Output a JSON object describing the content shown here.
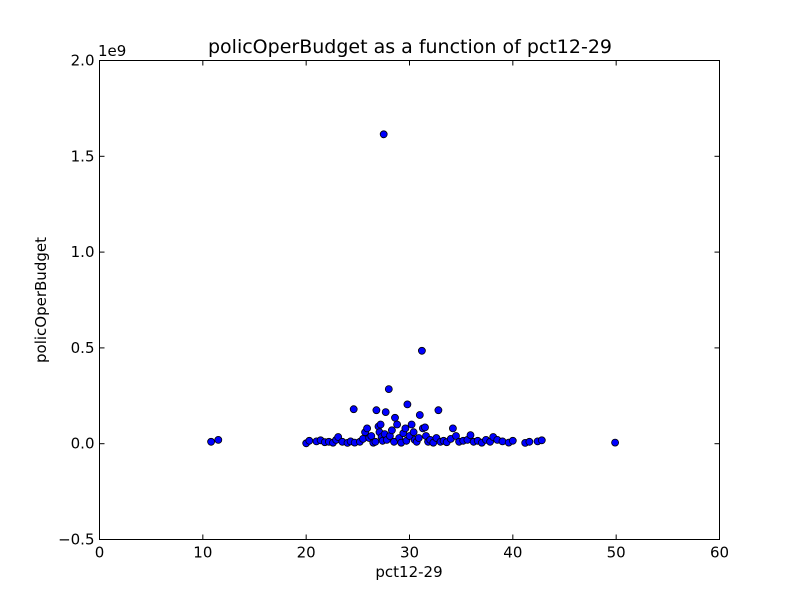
{
  "chart_data": {
    "type": "scatter",
    "title": "policOperBudget as a function of pct12-29",
    "xlabel": "pct12-29",
    "ylabel": "policOperBudget",
    "y_offset_label": "1e9",
    "xlim": [
      0,
      60
    ],
    "ylim": [
      -0.5,
      2.0
    ],
    "x_ticks": [
      0,
      10,
      20,
      30,
      40,
      50,
      60
    ],
    "x_tick_labels": [
      "0",
      "10",
      "20",
      "30",
      "40",
      "50",
      "60"
    ],
    "y_ticks": [
      -0.5,
      0.0,
      0.5,
      1.0,
      1.5,
      2.0
    ],
    "y_tick_labels": [
      "−0.5",
      "0.0",
      "0.5",
      "1.0",
      "1.5",
      "2.0"
    ],
    "grid": false,
    "marker_color": "#0000ff",
    "marker_edge_color": "#000000",
    "points": [
      {
        "x": 10.8,
        "y": 0.01
      },
      {
        "x": 11.5,
        "y": 0.02
      },
      {
        "x": 20.0,
        "y": 0.002
      },
      {
        "x": 20.3,
        "y": 0.015
      },
      {
        "x": 21.0,
        "y": 0.012
      },
      {
        "x": 21.4,
        "y": 0.018
      },
      {
        "x": 21.8,
        "y": 0.008
      },
      {
        "x": 22.2,
        "y": 0.01
      },
      {
        "x": 22.6,
        "y": 0.005
      },
      {
        "x": 22.9,
        "y": 0.02
      },
      {
        "x": 23.1,
        "y": 0.035
      },
      {
        "x": 23.5,
        "y": 0.01
      },
      {
        "x": 24.0,
        "y": 0.004
      },
      {
        "x": 24.3,
        "y": 0.012
      },
      {
        "x": 24.7,
        "y": 0.006
      },
      {
        "x": 24.6,
        "y": 0.18
      },
      {
        "x": 25.2,
        "y": 0.01
      },
      {
        "x": 25.5,
        "y": 0.025
      },
      {
        "x": 25.7,
        "y": 0.06
      },
      {
        "x": 25.9,
        "y": 0.08
      },
      {
        "x": 26.1,
        "y": 0.03
      },
      {
        "x": 26.3,
        "y": 0.04
      },
      {
        "x": 26.5,
        "y": 0.005
      },
      {
        "x": 26.7,
        "y": 0.01
      },
      {
        "x": 26.8,
        "y": 0.175
      },
      {
        "x": 27.0,
        "y": 0.09
      },
      {
        "x": 27.1,
        "y": 0.06
      },
      {
        "x": 27.2,
        "y": 0.1
      },
      {
        "x": 27.3,
        "y": 0.035
      },
      {
        "x": 27.4,
        "y": 0.015
      },
      {
        "x": 27.5,
        "y": 1.615
      },
      {
        "x": 27.6,
        "y": 0.05
      },
      {
        "x": 27.7,
        "y": 0.165
      },
      {
        "x": 27.8,
        "y": 0.02
      },
      {
        "x": 28.0,
        "y": 0.285
      },
      {
        "x": 28.1,
        "y": 0.04
      },
      {
        "x": 28.3,
        "y": 0.07
      },
      {
        "x": 28.5,
        "y": 0.01
      },
      {
        "x": 28.6,
        "y": 0.135
      },
      {
        "x": 28.8,
        "y": 0.1
      },
      {
        "x": 29.0,
        "y": 0.03
      },
      {
        "x": 29.2,
        "y": 0.005
      },
      {
        "x": 29.4,
        "y": 0.055
      },
      {
        "x": 29.6,
        "y": 0.08
      },
      {
        "x": 29.7,
        "y": 0.015
      },
      {
        "x": 29.8,
        "y": 0.205
      },
      {
        "x": 30.0,
        "y": 0.04
      },
      {
        "x": 30.2,
        "y": 0.1
      },
      {
        "x": 30.4,
        "y": 0.06
      },
      {
        "x": 30.5,
        "y": 0.02
      },
      {
        "x": 30.7,
        "y": 0.01
      },
      {
        "x": 30.9,
        "y": 0.03
      },
      {
        "x": 31.0,
        "y": 0.15
      },
      {
        "x": 31.2,
        "y": 0.485
      },
      {
        "x": 31.3,
        "y": 0.08
      },
      {
        "x": 31.5,
        "y": 0.085
      },
      {
        "x": 31.6,
        "y": 0.04
      },
      {
        "x": 31.8,
        "y": 0.01
      },
      {
        "x": 32.0,
        "y": 0.02
      },
      {
        "x": 32.3,
        "y": 0.005
      },
      {
        "x": 32.6,
        "y": 0.03
      },
      {
        "x": 32.8,
        "y": 0.175
      },
      {
        "x": 33.0,
        "y": 0.01
      },
      {
        "x": 33.3,
        "y": 0.015
      },
      {
        "x": 33.6,
        "y": 0.008
      },
      {
        "x": 34.0,
        "y": 0.025
      },
      {
        "x": 34.2,
        "y": 0.08
      },
      {
        "x": 34.5,
        "y": 0.04
      },
      {
        "x": 34.8,
        "y": 0.01
      },
      {
        "x": 35.2,
        "y": 0.015
      },
      {
        "x": 35.6,
        "y": 0.02
      },
      {
        "x": 35.9,
        "y": 0.045
      },
      {
        "x": 36.2,
        "y": 0.01
      },
      {
        "x": 36.6,
        "y": 0.015
      },
      {
        "x": 37.0,
        "y": 0.005
      },
      {
        "x": 37.4,
        "y": 0.02
      },
      {
        "x": 37.8,
        "y": 0.01
      },
      {
        "x": 38.1,
        "y": 0.035
      },
      {
        "x": 38.5,
        "y": 0.02
      },
      {
        "x": 39.0,
        "y": 0.012
      },
      {
        "x": 39.6,
        "y": 0.006
      },
      {
        "x": 40.0,
        "y": 0.015
      },
      {
        "x": 41.2,
        "y": 0.004
      },
      {
        "x": 41.6,
        "y": 0.01
      },
      {
        "x": 42.4,
        "y": 0.012
      },
      {
        "x": 42.8,
        "y": 0.018
      },
      {
        "x": 49.9,
        "y": 0.006
      }
    ]
  }
}
